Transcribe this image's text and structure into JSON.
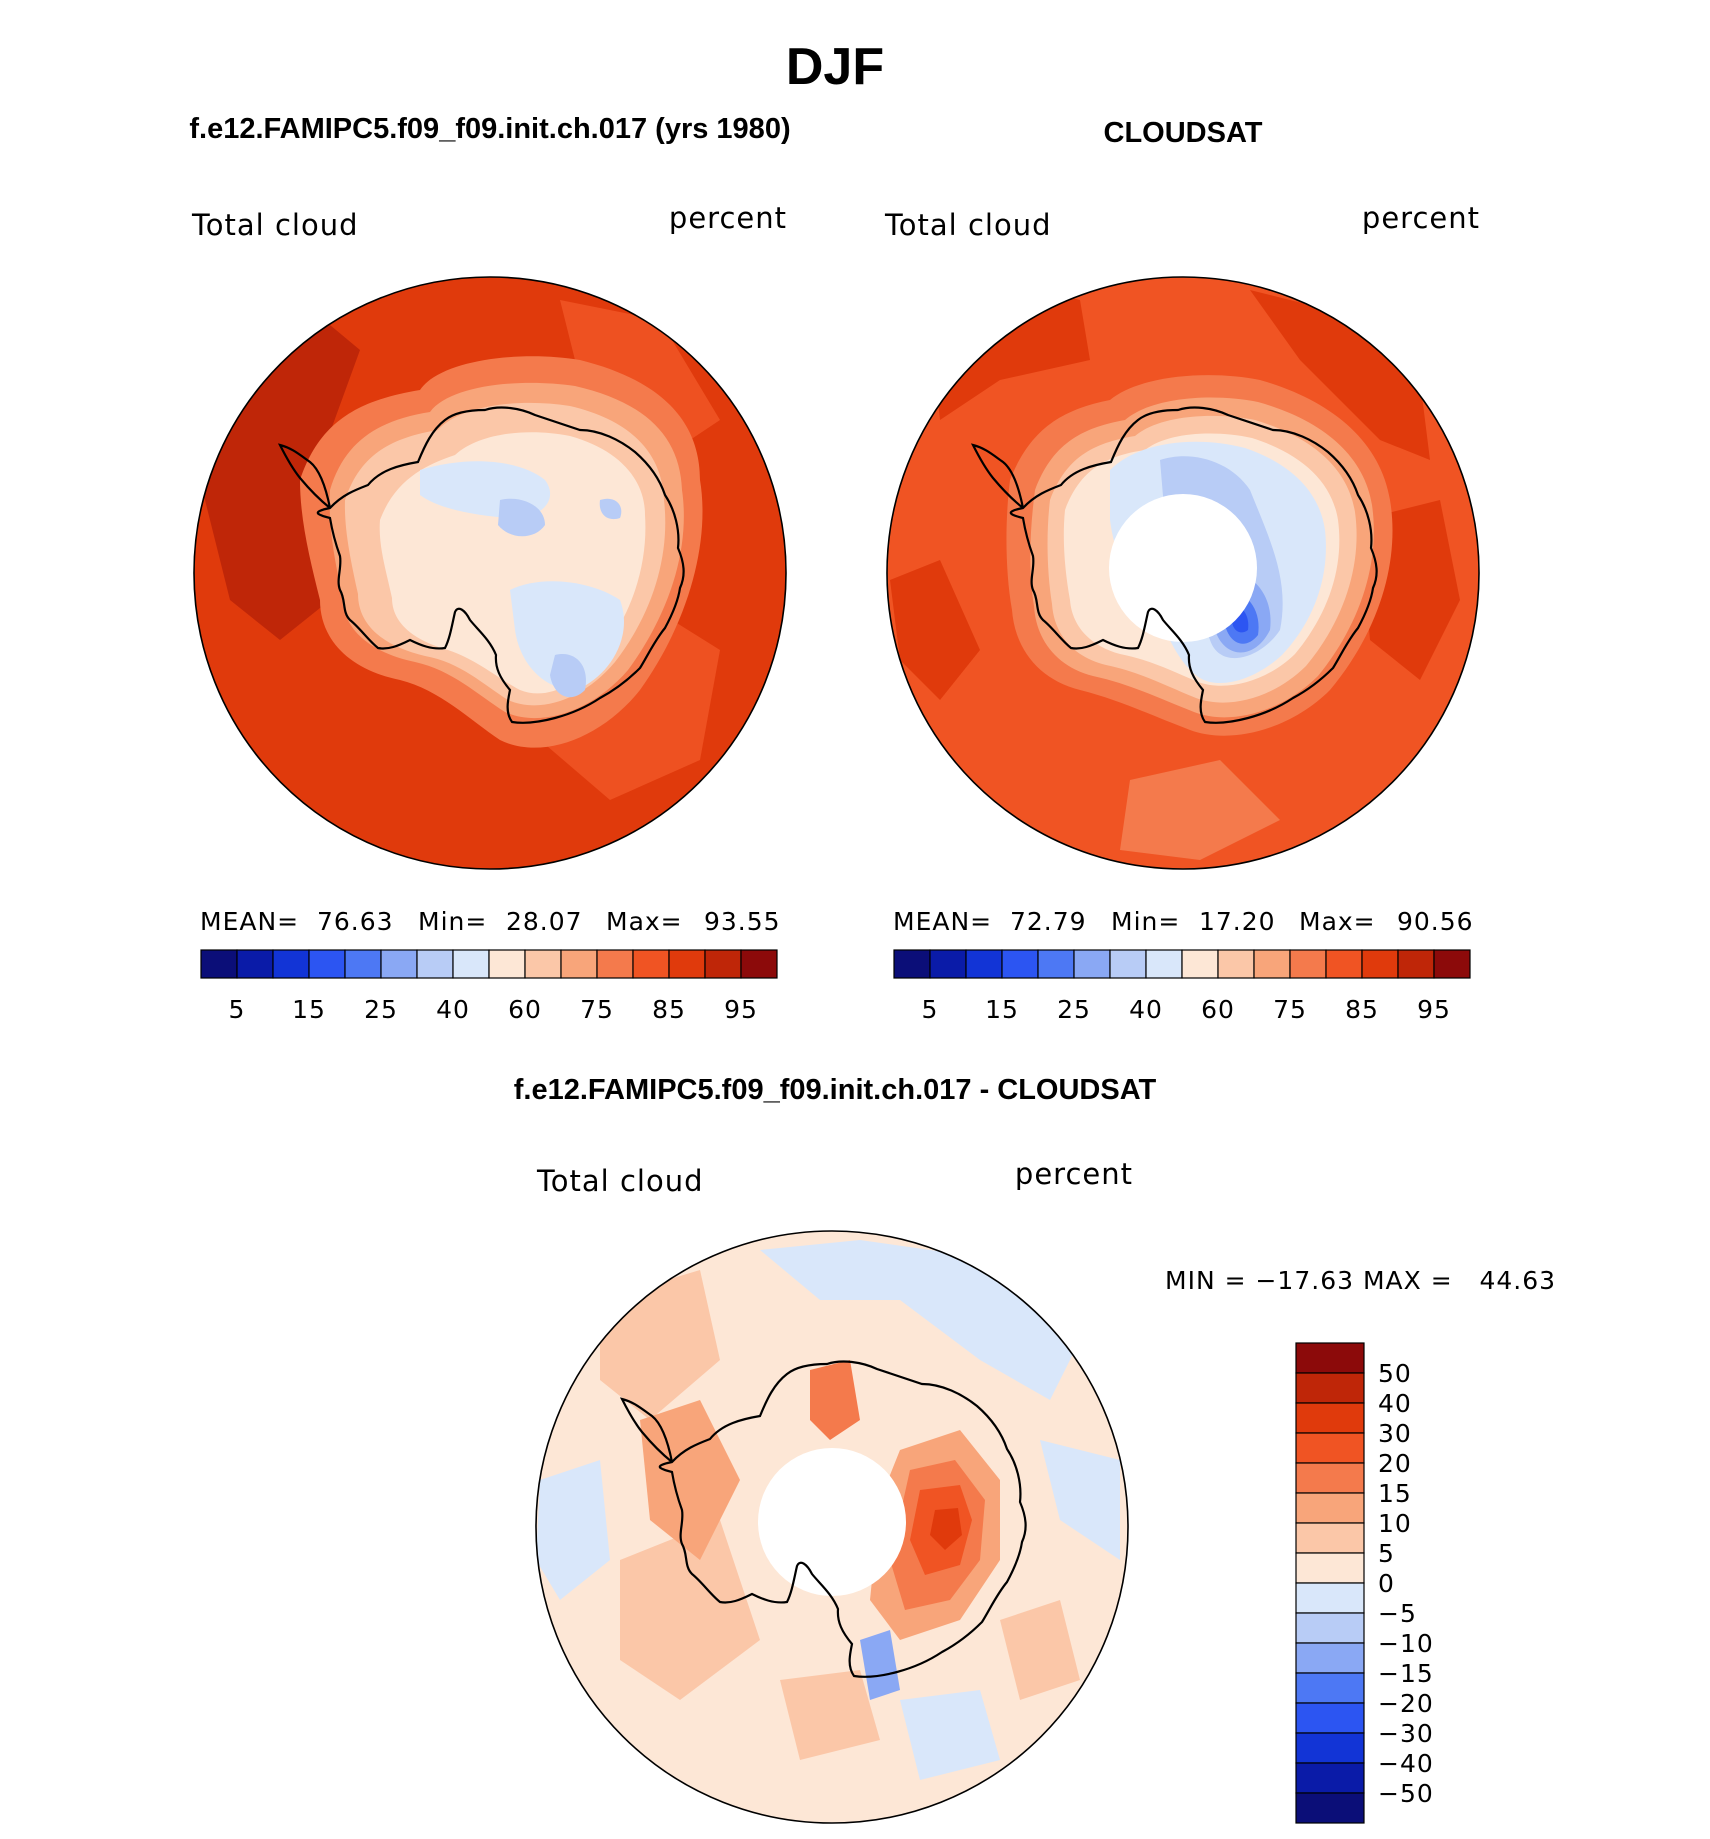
{
  "chart_data": {
    "type": "heatmap",
    "title": "DJF",
    "colors": {
      "main_scale": [
        "#0b0e78",
        "#0a1ba8",
        "#1234d6",
        "#2c55f2",
        "#4d78f4",
        "#8aa8f4",
        "#b8ccf6",
        "#d9e7fa",
        "#fde7d6",
        "#fbc7a8",
        "#f8a57a",
        "#f47a4c",
        "#f05423",
        "#e03a0c",
        "#bf2608",
        "#8c0a0a"
      ],
      "diff_scale": [
        "#8c0a0a",
        "#bf2608",
        "#e03a0c",
        "#f05423",
        "#f47a4c",
        "#f8a57a",
        "#fbc7a8",
        "#fde7d6",
        "#d9e7fa",
        "#b8ccf6",
        "#8aa8f4",
        "#4d78f4",
        "#2c55f2",
        "#1234d6",
        "#0a1ba8",
        "#0b0e78"
      ]
    },
    "panels": [
      {
        "title": "f.e12.FAMIPC5.f09_f09.init.ch.017 (yrs 1980)",
        "left_label": "Total cloud",
        "right_label": "percent",
        "stats": {
          "mean_label": "MEAN=",
          "mean": "76.63",
          "min_label": "Min=",
          "min": "28.07",
          "max_label": "Max=",
          "max": "93.55"
        },
        "colorbar_ticks": [
          "5",
          "15",
          "25",
          "40",
          "60",
          "75",
          "85",
          "95"
        ],
        "ocean_level": "85",
        "interior_level": "60",
        "has_pole_hole": false
      },
      {
        "title": "CLOUDSAT",
        "left_label": "Total cloud",
        "right_label": "percent",
        "stats": {
          "mean_label": "MEAN=",
          "mean": "72.79",
          "min_label": "Min=",
          "min": "17.20",
          "max_label": "Max=",
          "max": "90.56"
        },
        "colorbar_ticks": [
          "5",
          "15",
          "25",
          "40",
          "60",
          "75",
          "85",
          "95"
        ],
        "ocean_level": "85",
        "interior_level": "40",
        "has_pole_hole": true
      },
      {
        "title": "f.e12.FAMIPC5.f09_f09.init.ch.017 - CLOUDSAT",
        "left_label": "Total cloud",
        "right_label": "percent",
        "minmax_text": "MIN = −17.63 MAX =   44.63",
        "colorbar_ticks": [
          "50",
          "40",
          "30",
          "20",
          "15",
          "10",
          "5",
          "0",
          "−5",
          "−10",
          "−15",
          "−20",
          "−30",
          "−40",
          "−50"
        ],
        "ocean_level": "0",
        "interior_level": "20",
        "has_pole_hole": true
      }
    ]
  }
}
